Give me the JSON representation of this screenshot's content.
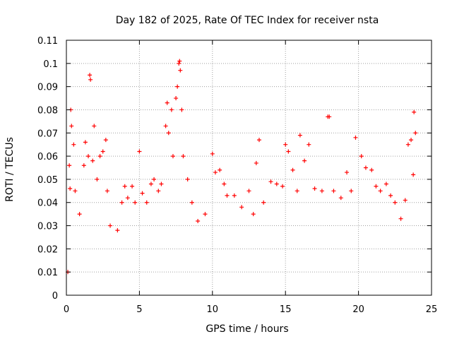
{
  "chart_data": {
    "type": "scatter",
    "title": "Day 182 of 2025, Rate Of TEC Index for receiver nsta",
    "xlabel": "GPS time / hours",
    "ylabel": "ROTI / TECUs",
    "xlim": [
      0,
      25
    ],
    "ylim": [
      0,
      0.11
    ],
    "xticks": [
      0,
      5,
      10,
      15,
      20,
      25
    ],
    "xtick_labels": [
      "0",
      "5",
      "10",
      "15",
      "20",
      "25"
    ],
    "yticks": [
      0,
      0.01,
      0.02,
      0.03,
      0.04,
      0.05,
      0.06,
      0.07,
      0.08,
      0.09,
      0.1,
      0.11
    ],
    "ytick_labels": [
      "0",
      "0.01",
      "0.02",
      "0.03",
      "0.04",
      "0.05",
      "0.06",
      "0.07",
      "0.08",
      "0.09",
      "0.1",
      "0.11"
    ],
    "grid": true,
    "marker": "+",
    "series": [
      {
        "name": "ROTI",
        "color": "#ff0000",
        "x": [
          0.1,
          0.2,
          0.25,
          0.3,
          0.35,
          0.5,
          0.6,
          0.9,
          1.2,
          1.3,
          1.5,
          1.6,
          1.65,
          1.8,
          1.9,
          2.1,
          2.3,
          2.5,
          2.7,
          2.8,
          3.0,
          3.5,
          3.8,
          4.0,
          4.2,
          4.5,
          4.7,
          5.0,
          5.2,
          5.5,
          5.8,
          6.0,
          6.3,
          6.5,
          6.8,
          6.9,
          7.0,
          7.2,
          7.3,
          7.5,
          7.6,
          7.7,
          7.75,
          7.8,
          7.9,
          8.0,
          8.3,
          8.6,
          9.0,
          9.5,
          10.0,
          10.2,
          10.5,
          10.8,
          11.0,
          11.5,
          12.0,
          12.5,
          12.8,
          13.0,
          13.2,
          13.5,
          14.0,
          14.4,
          14.8,
          15.0,
          15.2,
          15.5,
          15.8,
          16.0,
          16.3,
          16.6,
          17.0,
          17.5,
          17.9,
          18.0,
          18.3,
          18.8,
          19.2,
          19.5,
          19.8,
          20.2,
          20.5,
          20.9,
          21.2,
          21.5,
          21.9,
          22.2,
          22.5,
          22.9,
          23.2,
          23.4,
          23.6,
          23.75,
          23.8,
          23.9
        ],
        "y": [
          0.01,
          0.056,
          0.046,
          0.08,
          0.073,
          0.065,
          0.045,
          0.035,
          0.056,
          0.066,
          0.06,
          0.095,
          0.093,
          0.058,
          0.073,
          0.05,
          0.06,
          0.062,
          0.067,
          0.045,
          0.03,
          0.028,
          0.04,
          0.047,
          0.042,
          0.047,
          0.04,
          0.062,
          0.044,
          0.04,
          0.048,
          0.05,
          0.045,
          0.048,
          0.073,
          0.083,
          0.07,
          0.08,
          0.06,
          0.085,
          0.09,
          0.1,
          0.101,
          0.097,
          0.08,
          0.06,
          0.05,
          0.04,
          0.032,
          0.035,
          0.061,
          0.053,
          0.054,
          0.048,
          0.043,
          0.043,
          0.038,
          0.045,
          0.035,
          0.057,
          0.067,
          0.04,
          0.049,
          0.048,
          0.047,
          0.065,
          0.062,
          0.054,
          0.045,
          0.069,
          0.058,
          0.065,
          0.046,
          0.045,
          0.077,
          0.077,
          0.045,
          0.042,
          0.053,
          0.045,
          0.068,
          0.06,
          0.055,
          0.054,
          0.047,
          0.045,
          0.048,
          0.043,
          0.04,
          0.033,
          0.041,
          0.065,
          0.067,
          0.052,
          0.079,
          0.07
        ]
      }
    ]
  }
}
